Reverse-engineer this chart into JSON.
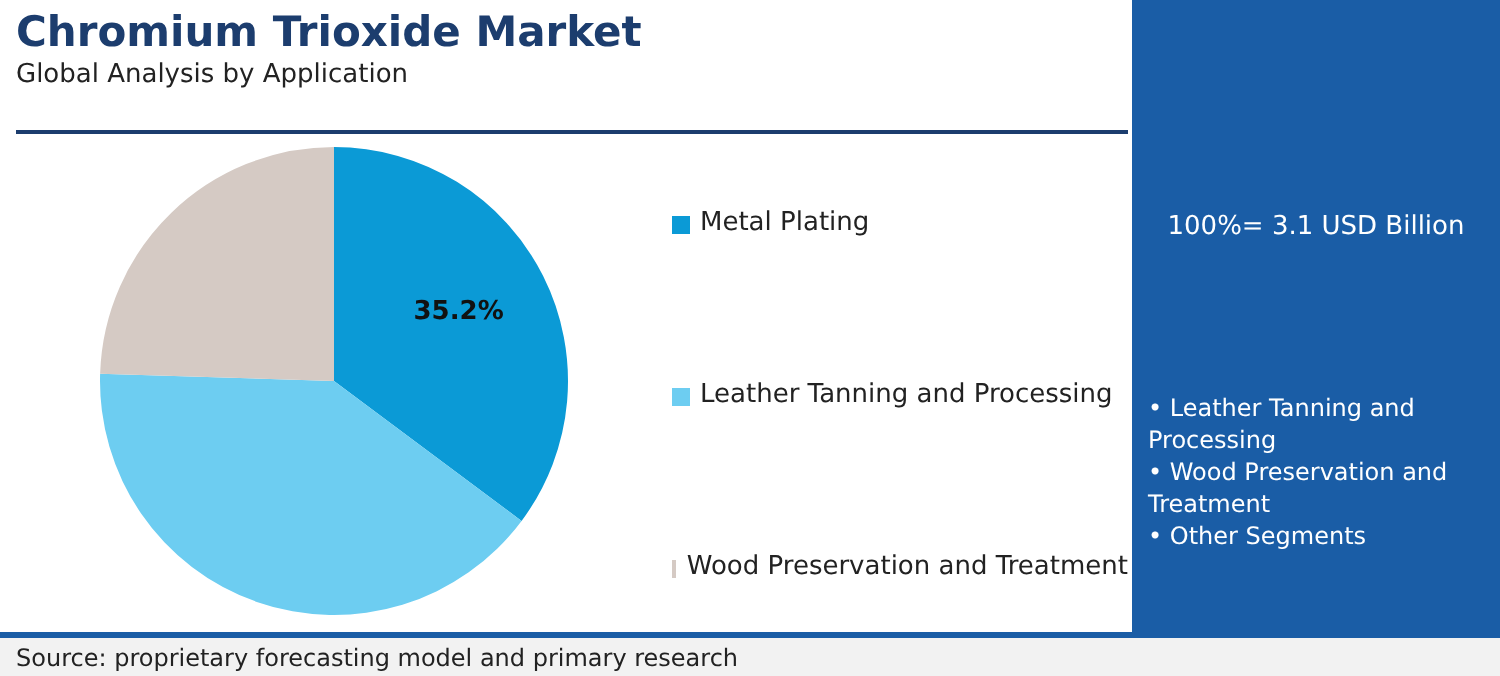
{
  "chart_data": {
    "type": "pie",
    "title": "Chromium Trioxide Market",
    "subtitle": "Global Analysis by Application",
    "categories": [
      "Metal Plating",
      "Leather Tanning and Processing",
      "Wood Preservation and Treatment"
    ],
    "values": [
      35.2,
      40.3,
      24.5
    ],
    "colors": [
      "#0b9ad6",
      "#6dcdf1",
      "#d5cac4"
    ],
    "value_labels": [
      "35.2%",
      null,
      null
    ],
    "legend": "right",
    "annotations": [
      "100%= 3.1 USD Billion",
      "• Leather Tanning and Processing",
      "• Wood Preservation and Treatment",
      "• Other Segments",
      "Source: proprietary forecasting model and primary research"
    ]
  }
}
